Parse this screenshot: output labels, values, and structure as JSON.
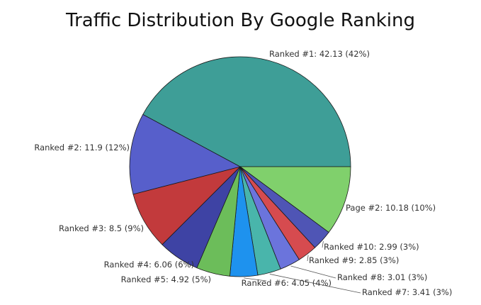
{
  "chart_data": {
    "type": "pie",
    "title": "Traffic Distribution By Google Ranking",
    "slices": [
      {
        "label": "Ranked #1: 42.13 (42%)",
        "name": "Ranked #1",
        "value": 42.13,
        "color": "#3e9e97"
      },
      {
        "label": "Page #2: 10.18 (10%)",
        "name": "Page #2",
        "value": 10.18,
        "color": "#80d06c"
      },
      {
        "label": "Ranked #10: 2.99 (3%)",
        "name": "Ranked #10",
        "value": 2.99,
        "color": "#4f55b5"
      },
      {
        "label": "Ranked #9: 2.85 (3%)",
        "name": "Ranked #9",
        "value": 2.85,
        "color": "#d64b4f"
      },
      {
        "label": "Ranked #8: 3.01 (3%)",
        "name": "Ranked #8",
        "value": 3.01,
        "color": "#6b74dc"
      },
      {
        "label": "Ranked #7: 3.41 (3%)",
        "name": "Ranked #7",
        "value": 3.41,
        "color": "#49b5ab"
      },
      {
        "label": "Ranked #6: 4.05 (4%)",
        "name": "Ranked #6",
        "value": 4.05,
        "color": "#1e92ee"
      },
      {
        "label": "Ranked #5: 4.92 (5%)",
        "name": "Ranked #5",
        "value": 4.92,
        "color": "#6cbd5a"
      },
      {
        "label": "Ranked #4: 6.06 (6%)",
        "name": "Ranked #4",
        "value": 6.06,
        "color": "#3e43a4"
      },
      {
        "label": "Ranked #3: 8.5 (9%)",
        "name": "Ranked #3",
        "value": 8.5,
        "color": "#c23a3c"
      },
      {
        "label": "Ranked #2: 11.9 (12%)",
        "name": "Ranked #2",
        "value": 11.9,
        "color": "#575fcb"
      }
    ]
  }
}
